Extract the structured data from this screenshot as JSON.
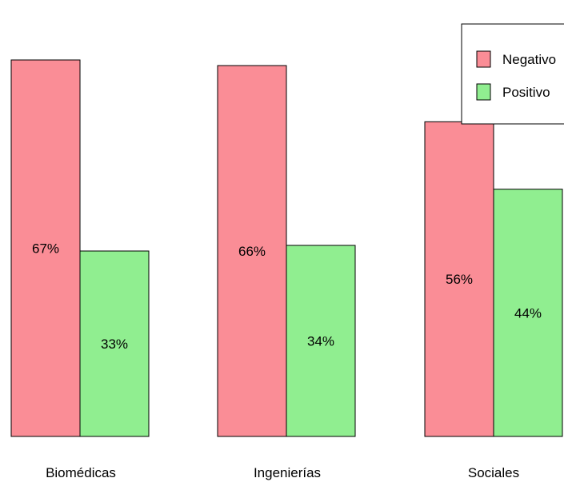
{
  "chart_data": {
    "type": "bar",
    "categories": [
      "Biomédicas",
      "Ingenierías",
      "Sociales"
    ],
    "series": [
      {
        "name": "Negativo",
        "color": "#fa8d96",
        "values": [
          0.67,
          0.66,
          0.56
        ],
        "labels": [
          "67%",
          "66%",
          "56%"
        ]
      },
      {
        "name": "Positivo",
        "color": "#90ee90",
        "values": [
          0.33,
          0.34,
          0.44
        ],
        "labels": [
          "33%",
          "34%",
          "44%"
        ]
      }
    ],
    "title": "",
    "xlabel": "",
    "ylabel": "",
    "ylim": [
      0,
      0.67
    ],
    "grid": false,
    "legend": "top-right"
  }
}
